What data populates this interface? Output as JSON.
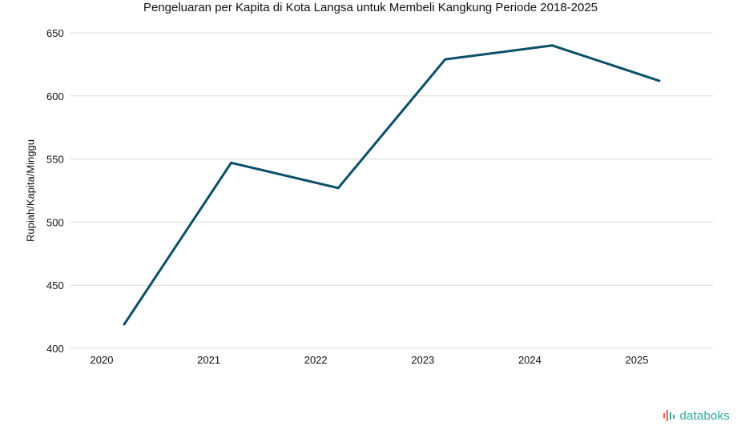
{
  "chart_data": {
    "type": "line",
    "title": "Pengeluaran per Kapita di Kota Langsa untuk Membeli Kangkung Periode 2018-2025",
    "xlabel": "",
    "ylabel": "Rupiah/Kapita/Minggu",
    "x": [
      "2020",
      "2021",
      "2022",
      "2023",
      "2024",
      "2025"
    ],
    "series": [
      {
        "values": [
          419,
          547,
          527,
          629,
          640,
          612
        ],
        "color": "#0a4f6b"
      }
    ],
    "ylim": [
      400,
      650
    ],
    "yticks": [
      "400",
      "450",
      "500",
      "550",
      "600",
      "650"
    ],
    "xticks": [
      "2020",
      "2021",
      "2022",
      "2023",
      "2024",
      "2025"
    ],
    "grid": true,
    "legend": "none"
  },
  "brand": {
    "name": "databoks",
    "logo_colors": [
      "#f0604d",
      "#2aa7a1"
    ]
  }
}
